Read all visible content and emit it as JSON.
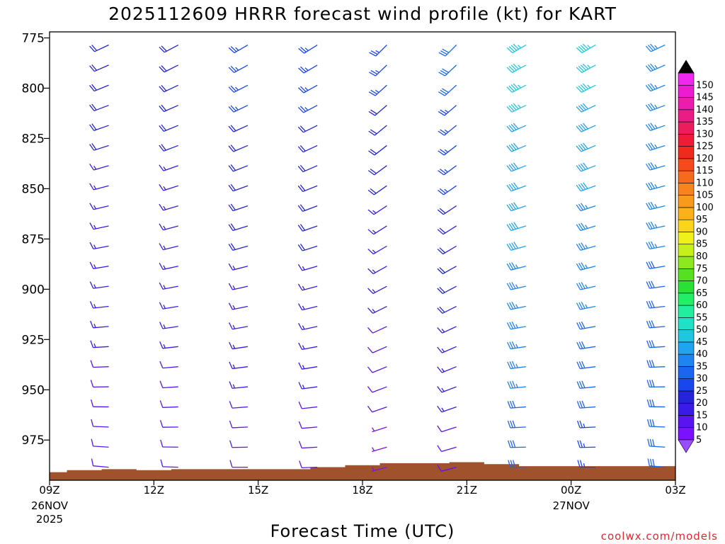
{
  "chart_data": {
    "type": "wind_barb_profile",
    "title": "2025112609 HRRR forecast wind profile (kt) for KART",
    "xlabel": "Forecast Time (UTC)",
    "ylabel": "",
    "credit": "coolwx.com/models",
    "y_axis": {
      "min": 775,
      "max": 995,
      "inverted": true,
      "ticks": [
        "775",
        "800",
        "825",
        "850",
        "875",
        "900",
        "925",
        "950",
        "975"
      ]
    },
    "x_axis": {
      "min": 0,
      "max": 18,
      "ticks": [
        {
          "hour": 0,
          "label": "09Z",
          "sub": [
            "26NOV",
            "2025"
          ]
        },
        {
          "hour": 3,
          "label": "12Z",
          "sub": []
        },
        {
          "hour": 6,
          "label": "15Z",
          "sub": []
        },
        {
          "hour": 9,
          "label": "18Z",
          "sub": []
        },
        {
          "hour": 12,
          "label": "21Z",
          "sub": []
        },
        {
          "hour": 15,
          "label": "00Z",
          "sub": [
            "27NOV"
          ]
        },
        {
          "hour": 18,
          "label": "03Z",
          "sub": []
        }
      ]
    },
    "terrain": {
      "hours": [
        0,
        0.5,
        1.5,
        2.5,
        3.5,
        4.5,
        5.5,
        6.5,
        7.5,
        8.5,
        9.5,
        10.5,
        11.5,
        12.5,
        13.5,
        14.5,
        15.5,
        16.5,
        17.5,
        18
      ],
      "pressure": [
        991,
        990,
        989.5,
        990,
        989.5,
        989.5,
        989.5,
        989.5,
        988.5,
        987.5,
        986.5,
        986.5,
        986,
        987,
        988,
        988,
        988,
        988,
        988,
        988
      ]
    },
    "columns": [
      {
        "hour": 1.7,
        "dir": 245,
        "speed_top": 20,
        "speed_bottom": 10
      },
      {
        "hour": 3.7,
        "dir": 242,
        "speed_top": 20,
        "speed_bottom": 10
      },
      {
        "hour": 5.7,
        "dir": 240,
        "speed_top": 25,
        "speed_bottom": 10
      },
      {
        "hour": 7.7,
        "dir": 238,
        "speed_top": 25,
        "speed_bottom": 10
      },
      {
        "hour": 9.7,
        "dir": 225,
        "speed_top": 25,
        "speed_bottom": 5
      },
      {
        "hour": 11.7,
        "dir": 225,
        "speed_top": 30,
        "speed_bottom": 10
      },
      {
        "hour": 13.7,
        "dir": 240,
        "speed_top": 45,
        "speed_bottom": 30
      },
      {
        "hour": 15.7,
        "dir": 240,
        "speed_top": 45,
        "speed_bottom": 25
      },
      {
        "hour": 17.7,
        "dir": 245,
        "speed_top": 35,
        "speed_bottom": 30
      }
    ],
    "colorbar": {
      "labels": [
        "5",
        "10",
        "15",
        "20",
        "25",
        "30",
        "35",
        "40",
        "45",
        "50",
        "55",
        "60",
        "65",
        "70",
        "75",
        "80",
        "85",
        "90",
        "95",
        "100",
        "105",
        "110",
        "115",
        "120",
        "125",
        "130",
        "135",
        "140",
        "145",
        "150"
      ],
      "colors": [
        "#7a12ff",
        "#5a14f0",
        "#3a1ae6",
        "#2424d8",
        "#1a46ee",
        "#1a66f0",
        "#1e84f2",
        "#20a4f2",
        "#1ec6e0",
        "#20e0c8",
        "#22eea0",
        "#22ee66",
        "#2ae036",
        "#56e020",
        "#8ee81e",
        "#c6f01c",
        "#f0f01a",
        "#fcd41a",
        "#fcb01a",
        "#f89a1c",
        "#f8841e",
        "#f66a1e",
        "#f44a1c",
        "#f02a1c",
        "#ee1c3a",
        "#ec1c5e",
        "#ec1c86",
        "#ec1cae",
        "#ec1cd2",
        "#f028f0"
      ],
      "top_arrow_color": "#000000",
      "bottom_arrow_color": "#9a4cff"
    },
    "terrain_color": "#a0522d"
  }
}
